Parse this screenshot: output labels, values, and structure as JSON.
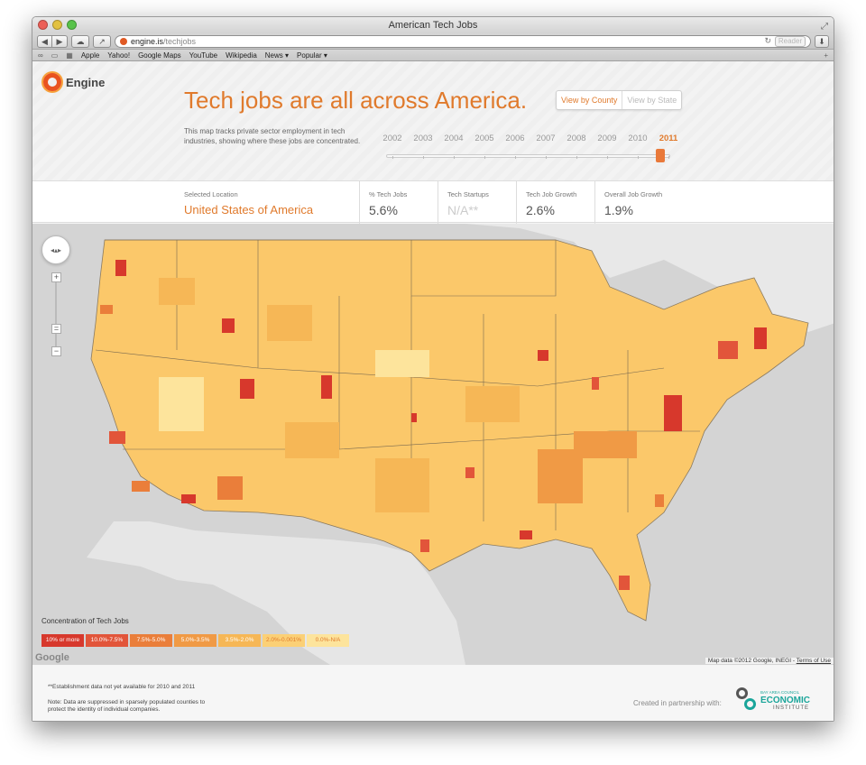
{
  "window": {
    "title": "American Tech Jobs"
  },
  "toolbar": {
    "url_host": "engine.is",
    "url_path": "/techjobs",
    "reader_label": "Reader"
  },
  "bookmarks": [
    "Apple",
    "Yahoo!",
    "Google Maps",
    "YouTube",
    "Wikipedia",
    "News ▾",
    "Popular ▾"
  ],
  "header": {
    "logo_text": "Engine",
    "headline": "Tech jobs are all across America.",
    "view_county": "View by County",
    "view_state": "View by State",
    "description": "This map tracks private sector employment in tech industries, showing where these jobs are concentrated.",
    "years": [
      "2002",
      "2003",
      "2004",
      "2005",
      "2006",
      "2007",
      "2008",
      "2009",
      "2010",
      "2011"
    ],
    "selected_year": "2011"
  },
  "stats": {
    "location_label": "Selected Location",
    "location_value": "United States of America",
    "tech_jobs_label": "% Tech Jobs",
    "tech_jobs_value": "5.6%",
    "startups_label": "Tech Startups",
    "startups_value": "N/A**",
    "job_growth_label": "Tech Job Growth",
    "job_growth_value": "2.6%",
    "overall_growth_label": "Overall Job Growth",
    "overall_growth_value": "1.9%"
  },
  "legend": {
    "title": "Concentration of Tech Jobs",
    "items": [
      {
        "label": "10% or more",
        "color": "#d7382c"
      },
      {
        "label": "10.0%-7.5%",
        "color": "#e2553a"
      },
      {
        "label": "7.5%-5.0%",
        "color": "#ea7e3a"
      },
      {
        "label": "5.0%-3.5%",
        "color": "#f09a45"
      },
      {
        "label": "3.5%-2.0%",
        "color": "#f6b756"
      },
      {
        "label": "2.0%-0.001%",
        "color": "#fbd076"
      },
      {
        "label": "0.0%-N/A",
        "color": "#fde49c"
      }
    ]
  },
  "map": {
    "google_label": "Google",
    "credit": "Map data ©2012 Google, INEGI - ",
    "terms": "Terms of Use"
  },
  "footer": {
    "note1": "**Establishment data not yet available for 2010 and 2011",
    "note2": "Note: Data are suppressed in sparsely populated counties to protect the identity of individual companies.",
    "partner_text": "Created in partnership with:",
    "partner_small": "BAY AREA COUNCIL",
    "partner_big": "ECONOMIC",
    "partner_inst": "INSTITUTE"
  }
}
